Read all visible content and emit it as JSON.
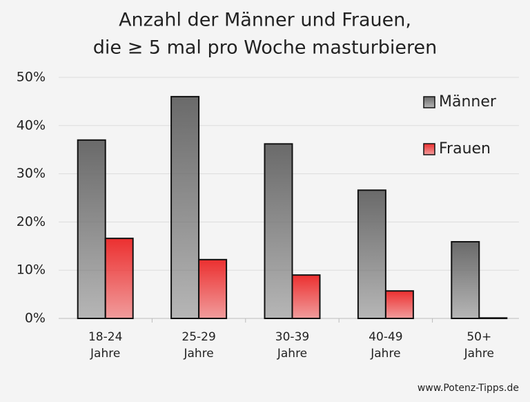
{
  "chart_data": {
    "type": "bar",
    "title": [
      "Anzahl der Männer und Frauen,",
      "die ≥ 5 mal pro Woche masturbieren"
    ],
    "categories": [
      [
        "18-24",
        "Jahre"
      ],
      [
        "25-29",
        "Jahre"
      ],
      [
        "30-39",
        "Jahre"
      ],
      [
        "40-49",
        "Jahre"
      ],
      [
        "50+",
        "Jahre"
      ]
    ],
    "series": [
      {
        "name": "Männer",
        "color": "#6a6a6a",
        "values": [
          37.0,
          46.0,
          36.2,
          26.6,
          15.9
        ]
      },
      {
        "name": "Frauen",
        "color": "#ec3030",
        "values": [
          16.6,
          12.2,
          9.0,
          5.7,
          0.1
        ]
      }
    ],
    "ylim": [
      0,
      50
    ],
    "yticks": [
      {
        "value": 0,
        "label": "0%"
      },
      {
        "value": 10,
        "label": "10%"
      },
      {
        "value": 20,
        "label": "20%"
      },
      {
        "value": 30,
        "label": "30%"
      },
      {
        "value": 40,
        "label": "40%"
      },
      {
        "value": 50,
        "label": "50%"
      }
    ],
    "grid": true,
    "legend": "top-right",
    "footer": "www.Potenz-Tipps.de"
  }
}
